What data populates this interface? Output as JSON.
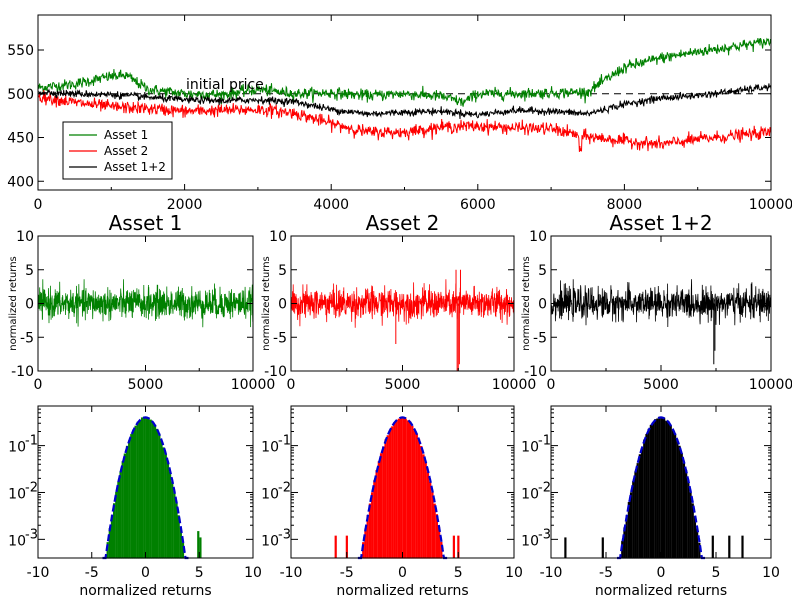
{
  "chart_data": [
    {
      "type": "line",
      "id": "prices",
      "xlim": [
        0,
        10000
      ],
      "ylim": [
        390,
        590
      ],
      "xticks": [
        "0",
        "2000",
        "4000",
        "6000",
        "8000",
        "10000"
      ],
      "yticks": [
        "400",
        "450",
        "500",
        "550"
      ],
      "annotation": "initial price",
      "reference_line": 500,
      "series": [
        {
          "name": "Asset 1",
          "color": "#008000",
          "x": [
            0,
            500,
            1000,
            1200,
            1500,
            2000,
            2500,
            3000,
            3500,
            4000,
            4500,
            5000,
            5500,
            5800,
            6000,
            6500,
            7000,
            7500,
            8000,
            8500,
            9000,
            9500,
            10000
          ],
          "y": [
            507,
            511,
            520,
            521,
            505,
            500,
            499,
            505,
            500,
            501,
            498,
            500,
            497,
            490,
            500,
            500,
            501,
            502,
            530,
            541,
            548,
            554,
            560
          ]
        },
        {
          "name": "Asset 2",
          "color": "#ff0000",
          "x": [
            0,
            500,
            1000,
            1500,
            2000,
            2500,
            3000,
            3500,
            4000,
            4500,
            5000,
            5500,
            6000,
            6500,
            7000,
            7400,
            8000,
            8500,
            9000,
            9500,
            10000
          ],
          "y": [
            497,
            490,
            485,
            483,
            480,
            481,
            482,
            478,
            466,
            456,
            456,
            462,
            463,
            461,
            460,
            452,
            446,
            442,
            448,
            452,
            456
          ]
        },
        {
          "name": "Asset 1+2",
          "color": "#000000",
          "x": [
            0,
            500,
            1000,
            1500,
            2000,
            2500,
            3000,
            3500,
            4000,
            4500,
            5000,
            5500,
            6000,
            6500,
            7000,
            7500,
            8000,
            8500,
            9000,
            9500,
            10000
          ],
          "y": [
            502,
            500,
            499,
            496,
            493,
            492,
            493,
            491,
            482,
            477,
            479,
            480,
            476,
            481,
            480,
            477,
            488,
            495,
            498,
            503,
            508
          ]
        }
      ],
      "legend": [
        "Asset 1",
        "Asset 2",
        "Asset 1+2"
      ]
    },
    {
      "type": "line",
      "id": "returns-asset1",
      "title": "Asset 1",
      "ylabel": "normalized returns",
      "color": "#008000",
      "xlim": [
        0,
        10000
      ],
      "ylim": [
        -10,
        10
      ],
      "xticks": [
        "0",
        "5000",
        "10000"
      ],
      "yticks": [
        "-10",
        "-5",
        "0",
        "5",
        "10"
      ],
      "noise_sigma": 1,
      "spikes": []
    },
    {
      "type": "line",
      "id": "returns-asset2",
      "title": "Asset 2",
      "ylabel": "normalized returns",
      "color": "#ff0000",
      "xlim": [
        0,
        10000
      ],
      "ylim": [
        -10,
        10
      ],
      "xticks": [
        "0",
        "5000",
        "10000"
      ],
      "yticks": [
        "-10",
        "-5",
        "0",
        "5",
        "10"
      ],
      "noise_sigma": 1,
      "spikes": [
        [
          4700,
          -6
        ],
        [
          7400,
          5
        ],
        [
          7450,
          -10
        ],
        [
          7500,
          -10
        ],
        [
          7550,
          -9
        ],
        [
          7600,
          5
        ]
      ]
    },
    {
      "type": "line",
      "id": "returns-asset12",
      "title": "Asset 1+2",
      "ylabel": "normalized returns",
      "color": "#000000",
      "xlim": [
        0,
        10000
      ],
      "ylim": [
        -10,
        10
      ],
      "xticks": [
        "0",
        "5000",
        "10000"
      ],
      "yticks": [
        "-10",
        "-5",
        "0",
        "5",
        "10"
      ],
      "noise_sigma": 1,
      "spikes": [
        [
          7400,
          -9
        ],
        [
          7450,
          -7
        ]
      ]
    },
    {
      "type": "bar",
      "id": "hist-asset1",
      "xlabel": "normalized returns",
      "color": "#008000",
      "fit_color": "#0000cc",
      "xlim": [
        -10,
        10
      ],
      "ylog": true,
      "ylim": [
        0.0004,
        0.7
      ],
      "xticks": [
        "-10",
        "-5",
        "0",
        "5",
        "10"
      ],
      "yticks": [
        "10",
        "10",
        "10"
      ],
      "ytick_exponents": [
        "-3",
        "-2",
        "-1"
      ],
      "outliers": [
        [
          4.9,
          0.0015
        ],
        [
          5.1,
          0.0011
        ]
      ]
    },
    {
      "type": "bar",
      "id": "hist-asset2",
      "xlabel": "normalized returns",
      "color": "#ff0000",
      "fit_color": "#0000cc",
      "xlim": [
        -10,
        10
      ],
      "ylog": true,
      "ylim": [
        0.0004,
        0.7
      ],
      "xticks": [
        "-10",
        "-5",
        "0",
        "5",
        "10"
      ],
      "yticks": [
        "10",
        "10",
        "10"
      ],
      "ytick_exponents": [
        "-3",
        "-2",
        "-1"
      ],
      "outliers": [
        [
          -6.0,
          0.0012
        ],
        [
          -5.0,
          0.0012
        ],
        [
          4.6,
          0.0012
        ],
        [
          5.0,
          0.0012
        ]
      ]
    },
    {
      "type": "bar",
      "id": "hist-asset12",
      "xlabel": "normalized returns",
      "color": "#000000",
      "fit_color": "#0000cc",
      "xlim": [
        -10,
        10
      ],
      "ylog": true,
      "ylim": [
        0.0004,
        0.7
      ],
      "xticks": [
        "-10",
        "-5",
        "0",
        "5",
        "10"
      ],
      "yticks": [
        "10",
        "10",
        "10"
      ],
      "ytick_exponents": [
        "-3",
        "-2",
        "-1"
      ],
      "outliers": [
        [
          -8.7,
          0.0011
        ],
        [
          -5.3,
          0.0011
        ],
        [
          4.7,
          0.0012
        ],
        [
          6.2,
          0.0012
        ],
        [
          7.4,
          0.0012
        ]
      ]
    }
  ]
}
